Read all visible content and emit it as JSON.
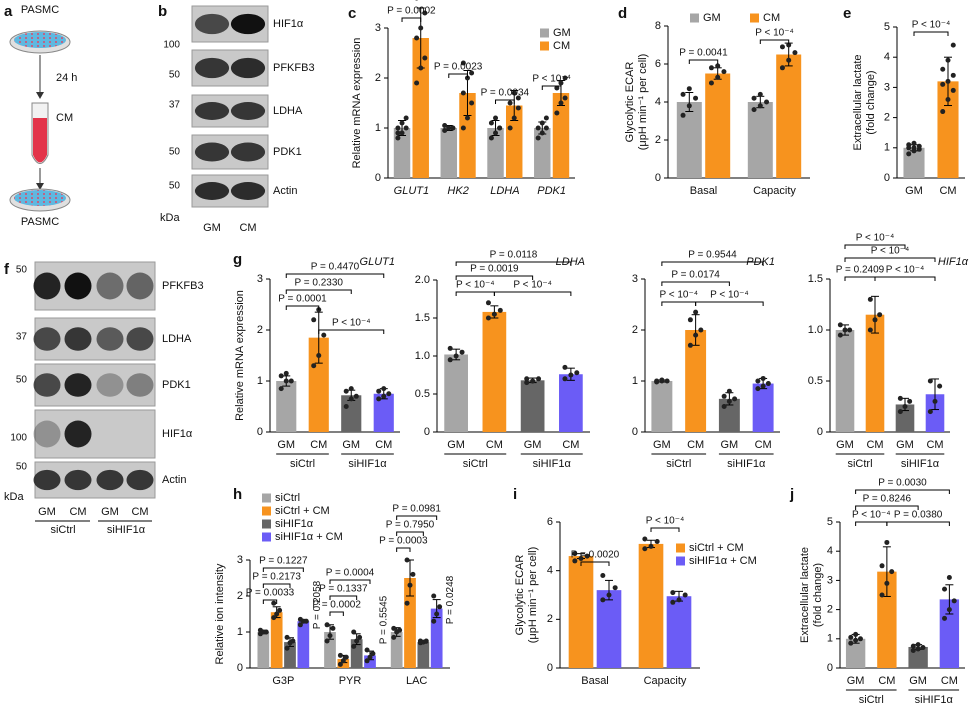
{
  "panel_labels": [
    "a",
    "b",
    "c",
    "d",
    "e",
    "f",
    "g",
    "h",
    "i",
    "j"
  ],
  "schematic": {
    "top": "PASMC",
    "step": "24 h",
    "medium": "CM",
    "bottom": "PASMC"
  },
  "blots": [
    {
      "proteins": [
        "HIF1α",
        "PFKFB3",
        "LDHA",
        "PDK1",
        "Actin"
      ],
      "markers": [
        100,
        50,
        37,
        50,
        50
      ],
      "unit": "kDa",
      "lanes": [
        "GM",
        "CM"
      ]
    },
    {
      "proteins": [
        "PFKFB3",
        "LDHA",
        "PDK1",
        "HIF1α",
        "Actin"
      ],
      "markers": [
        50,
        37,
        50,
        100,
        50
      ],
      "unit": "kDa",
      "lanes": [
        "GM",
        "CM",
        "GM",
        "CM"
      ],
      "groups": [
        "siCtrl",
        "siHIF1α"
      ]
    }
  ],
  "chart_data": [
    {
      "type": "bar",
      "ylabel": "Relative mRNA expression",
      "categories": [
        "GLUT1",
        "HK2",
        "LDHA",
        "PDK1"
      ],
      "ylim": [
        0,
        3
      ],
      "yticks": [
        0,
        1,
        2,
        3
      ],
      "series": [
        {
          "name": "GM",
          "color": "#a6a6a6",
          "values": [
            1.0,
            1.0,
            1.0,
            1.0
          ],
          "errors": [
            0.15,
            0.05,
            0.15,
            0.12
          ],
          "points": [
            [
              0.8,
              0.9,
              1.0,
              1.0,
              1.1,
              1.2,
              0.9
            ],
            [
              0.95,
              1.0,
              1.0,
              1.05,
              1.0,
              1.0
            ],
            [
              0.8,
              0.9,
              1.0,
              1.1,
              1.2,
              1.0
            ],
            [
              0.8,
              0.9,
              1.0,
              1.0,
              1.1,
              1.2
            ]
          ]
        },
        {
          "name": "CM",
          "color": "#f7931e",
          "values": [
            2.8,
            1.7,
            1.45,
            1.7
          ],
          "errors": [
            0.6,
            0.45,
            0.3,
            0.25
          ],
          "points": [
            [
              1.9,
              2.2,
              2.4,
              2.8,
              3.0,
              3.3,
              3.6
            ],
            [
              1.0,
              1.2,
              1.5,
              1.7,
              2.0,
              2.1,
              2.3
            ],
            [
              1.0,
              1.2,
              1.4,
              1.5,
              1.7,
              1.6
            ],
            [
              1.3,
              1.5,
              1.6,
              1.8,
              1.9,
              2.0
            ]
          ]
        }
      ],
      "annotations": [
        "P = 0.0002",
        "P = 0.0023",
        "P = 0.0034",
        "P < 10⁻⁴"
      ]
    },
    {
      "type": "bar",
      "ylabel": [
        "Glycolytic ECAR",
        "(μpH min⁻¹ per cell)"
      ],
      "categories": [
        "Basal",
        "Capacity"
      ],
      "ylim": [
        0,
        8
      ],
      "yticks": [
        0,
        2,
        4,
        6,
        8
      ],
      "series": [
        {
          "name": "GM",
          "color": "#a6a6a6",
          "values": [
            4.0,
            4.0
          ],
          "errors": [
            0.5,
            0.3
          ],
          "points": [
            [
              3.3,
              3.8,
              4.2,
              4.4,
              4.7
            ],
            [
              3.6,
              3.8,
              4.0,
              4.2,
              4.4
            ]
          ]
        },
        {
          "name": "CM",
          "color": "#f7931e",
          "values": [
            5.5,
            6.5
          ],
          "errors": [
            0.3,
            0.6
          ],
          "points": [
            [
              5.0,
              5.3,
              5.6,
              5.8,
              5.9
            ],
            [
              5.8,
              6.2,
              6.6,
              6.9,
              7.0
            ]
          ]
        }
      ],
      "annotations": [
        "P = 0.0041",
        "P < 10⁻⁴"
      ]
    },
    {
      "type": "bar",
      "ylabel": [
        "Extracellular lactate",
        "(fold change)"
      ],
      "categories": [
        "GM",
        "CM"
      ],
      "ylim": [
        0,
        5
      ],
      "yticks": [
        0,
        1,
        2,
        3,
        4,
        5
      ],
      "values": [
        1.0,
        3.2
      ],
      "errors": [
        0.1,
        0.8
      ],
      "colors": [
        "#a6a6a6",
        "#f7931e"
      ],
      "points": [
        [
          0.8,
          0.9,
          0.95,
          1.0,
          1.0,
          1.05,
          1.1,
          1.15
        ],
        [
          2.2,
          2.6,
          2.9,
          3.1,
          3.2,
          3.4,
          3.6,
          3.9,
          4.4
        ]
      ],
      "annotations": [
        "P < 10⁻⁴"
      ]
    },
    {
      "type": "bar",
      "title": "GLUT1",
      "ylabel": "Relative mRNA expression",
      "categories": [
        "GM",
        "CM",
        "GM",
        "CM"
      ],
      "groups": [
        "siCtrl",
        "siHIF1α"
      ],
      "ylim": [
        0,
        3
      ],
      "yticks": [
        0,
        1,
        2,
        3
      ],
      "values": [
        1.0,
        1.85,
        0.72,
        0.75
      ],
      "errors": [
        0.1,
        0.5,
        0.1,
        0.1
      ],
      "colors": [
        "#a6a6a6",
        "#f7931e",
        "#666666",
        "#6b5cf6"
      ],
      "points": [
        [
          0.85,
          1.0,
          1.0,
          1.1,
          1.15
        ],
        [
          1.3,
          1.5,
          1.9,
          2.2,
          2.4
        ],
        [
          0.5,
          0.65,
          0.7,
          0.8,
          0.85
        ],
        [
          0.65,
          0.7,
          0.75,
          0.8,
          0.85
        ]
      ],
      "annotations": [
        "P = 0.4470",
        "P = 0.2330",
        "P = 0.0001",
        "P < 10⁻⁴"
      ]
    },
    {
      "type": "bar",
      "title": "LDHA",
      "categories": [
        "GM",
        "CM",
        "GM",
        "CM"
      ],
      "groups": [
        "siCtrl",
        "siHIF1α"
      ],
      "ylim": [
        0,
        2
      ],
      "yticks": [
        0,
        0.5,
        {
          "value": 1,
          "label": "1.0"
        },
        1.5,
        {
          "value": 2,
          "label": "2.0"
        }
      ],
      "values": [
        1.02,
        1.58,
        0.68,
        0.76
      ],
      "errors": [
        0.07,
        0.08,
        0.03,
        0.08
      ],
      "colors": [
        "#a6a6a6",
        "#f7931e",
        "#666666",
        "#6b5cf6"
      ],
      "points": [
        [
          0.95,
          1.0,
          1.05,
          1.1
        ],
        [
          1.5,
          1.55,
          1.6,
          1.7
        ],
        [
          0.65,
          0.67,
          0.7,
          0.7
        ],
        [
          0.7,
          0.75,
          0.78,
          0.85
        ]
      ],
      "annotations": [
        "P = 0.0118",
        "P = 0.0019",
        "P < 10⁻⁴",
        "P < 10⁻⁴"
      ]
    },
    {
      "type": "bar",
      "title": "PDK1",
      "categories": [
        "GM",
        "CM",
        "GM",
        "CM"
      ],
      "groups": [
        "siCtrl",
        "siHIF1α"
      ],
      "ylim": [
        0,
        3
      ],
      "yticks": [
        0,
        1,
        2,
        3
      ],
      "values": [
        1.0,
        2.0,
        0.65,
        0.95
      ],
      "errors": [
        0.02,
        0.3,
        0.12,
        0.1
      ],
      "colors": [
        "#a6a6a6",
        "#f7931e",
        "#666666",
        "#6b5cf6"
      ],
      "points": [
        [
          0.98,
          1.0,
          1.0,
          1.0,
          1.02
        ],
        [
          1.7,
          1.9,
          2.0,
          2.2,
          2.35
        ],
        [
          0.5,
          0.6,
          0.65,
          0.7,
          0.8
        ],
        [
          0.85,
          0.9,
          0.95,
          1.0,
          1.05
        ]
      ],
      "annotations": [
        "P = 0.9544",
        "P = 0.0174",
        "P < 10⁻⁴",
        "P < 10⁻⁴"
      ]
    },
    {
      "type": "bar",
      "title": "HIF1α",
      "categories": [
        "GM",
        "CM",
        "GM",
        "CM"
      ],
      "groups": [
        "siCtrl",
        "siHIF1α"
      ],
      "ylim": [
        0,
        1.5
      ],
      "yticks": [
        0,
        0.5,
        {
          "value": 1,
          "label": "1.0"
        },
        1.5
      ],
      "values": [
        1.0,
        1.15,
        0.27,
        0.37
      ],
      "errors": [
        0.05,
        0.18,
        0.06,
        0.15
      ],
      "colors": [
        "#a6a6a6",
        "#f7931e",
        "#666666",
        "#6b5cf6"
      ],
      "points": [
        [
          0.95,
          1.0,
          1.0,
          1.05
        ],
        [
          1.0,
          1.1,
          1.15,
          1.3
        ],
        [
          0.2,
          0.25,
          0.3,
          0.33
        ],
        [
          0.2,
          0.3,
          0.45,
          0.5
        ]
      ],
      "annotations": [
        "P < 10⁻⁴",
        "P < 10⁻⁴",
        "P = 0.2409",
        "P < 10⁻⁴"
      ]
    },
    {
      "type": "bar",
      "ylabel": "Relative ion intensity",
      "categories": [
        "G3P",
        "PYR",
        "LAC"
      ],
      "ylim": [
        0,
        3
      ],
      "yticks": [
        0,
        1,
        2,
        3
      ],
      "series": [
        {
          "name": "siCtrl",
          "color": "#a6a6a6",
          "values": [
            1.0,
            1.0,
            1.0
          ],
          "errors": [
            0.05,
            0.2,
            0.12
          ],
          "points": [
            [
              0.95,
              1.0,
              1.0,
              1.05
            ],
            [
              0.75,
              0.9,
              1.1,
              1.2
            ],
            [
              0.85,
              1.0,
              1.05,
              1.1
            ]
          ]
        },
        {
          "name": "siCtrl + CM",
          "color": "#f7931e",
          "values": [
            1.55,
            0.25,
            2.5
          ],
          "errors": [
            0.15,
            0.1,
            0.5
          ],
          "points": [
            [
              1.4,
              1.5,
              1.6,
              1.8
            ],
            [
              0.1,
              0.2,
              0.3,
              0.35
            ],
            [
              1.8,
              2.3,
              2.6,
              3.0
            ]
          ]
        },
        {
          "name": "siHIF1α",
          "color": "#666666",
          "values": [
            0.72,
            0.8,
            0.72
          ],
          "errors": [
            0.12,
            0.15,
            0.03
          ],
          "points": [
            [
              0.55,
              0.7,
              0.75,
              0.85
            ],
            [
              0.6,
              0.75,
              0.85,
              1.0
            ],
            [
              0.7,
              0.72,
              0.75,
              0.75
            ]
          ]
        },
        {
          "name": "siHIF1α + CM",
          "color": "#6b5cf6",
          "values": [
            1.3,
            0.35,
            1.65
          ],
          "errors": [
            0.05,
            0.12,
            0.25
          ],
          "points": [
            [
              1.2,
              1.3,
              1.3,
              1.35
            ],
            [
              0.2,
              0.3,
              0.4,
              0.5
            ],
            [
              1.3,
              1.5,
              1.7,
              2.0
            ]
          ]
        }
      ],
      "annotations": [
        "P = 0.1227",
        "P = 0.2173",
        "P = 0.0033",
        "P = 0.2058",
        "P = 0.0004",
        "P = 0.1337",
        "P = 0.0002",
        "P = 0.5545",
        "P = 0.0981",
        "P = 0.7950",
        "P = 0.0003",
        "P = 0.0248"
      ]
    },
    {
      "type": "bar",
      "ylabel": [
        "Glycolytic ECAR",
        "(μpH min⁻¹ per cell)"
      ],
      "categories": [
        "Basal",
        "Capacity"
      ],
      "ylim": [
        0,
        6
      ],
      "yticks": [
        0,
        2,
        4,
        6
      ],
      "series": [
        {
          "name": "siCtrl + CM",
          "color": "#f7931e",
          "values": [
            4.6,
            5.1
          ],
          "errors": [
            0.1,
            0.15
          ],
          "points": [
            [
              4.4,
              4.5,
              4.6,
              4.7
            ],
            [
              4.9,
              5.0,
              5.2,
              5.3
            ]
          ]
        },
        {
          "name": "siHIF1α + CM",
          "color": "#6b5cf6",
          "values": [
            3.2,
            2.95
          ],
          "errors": [
            0.4,
            0.2
          ],
          "points": [
            [
              2.8,
              3.0,
              3.3,
              3.8
            ],
            [
              2.7,
              2.8,
              3.0,
              3.1
            ]
          ]
        }
      ],
      "annotations": [
        "P = 0.0020",
        "P < 10⁻⁴"
      ]
    },
    {
      "type": "bar",
      "ylabel": [
        "Extracellular lactate",
        "(fold change)"
      ],
      "categories": [
        "GM",
        "CM",
        "GM",
        "CM"
      ],
      "groups": [
        "siCtrl",
        "siHIF1α"
      ],
      "ylim": [
        0,
        5
      ],
      "yticks": [
        0,
        1,
        2,
        3,
        4,
        5
      ],
      "values": [
        1.0,
        3.3,
        0.72,
        2.35
      ],
      "errors": [
        0.15,
        0.85,
        0.08,
        0.5
      ],
      "colors": [
        "#a6a6a6",
        "#f7931e",
        "#666666",
        "#6b5cf6"
      ],
      "points": [
        [
          0.85,
          0.95,
          1.0,
          1.05,
          1.15
        ],
        [
          2.5,
          2.9,
          3.3,
          3.5,
          4.3
        ],
        [
          0.6,
          0.65,
          0.7,
          0.75,
          0.8
        ],
        [
          1.7,
          2.0,
          2.3,
          2.7,
          3.1
        ]
      ],
      "annotations": [
        "P = 0.0030",
        "P = 0.8246",
        "P < 10⁻⁴",
        "P = 0.0380"
      ]
    }
  ]
}
